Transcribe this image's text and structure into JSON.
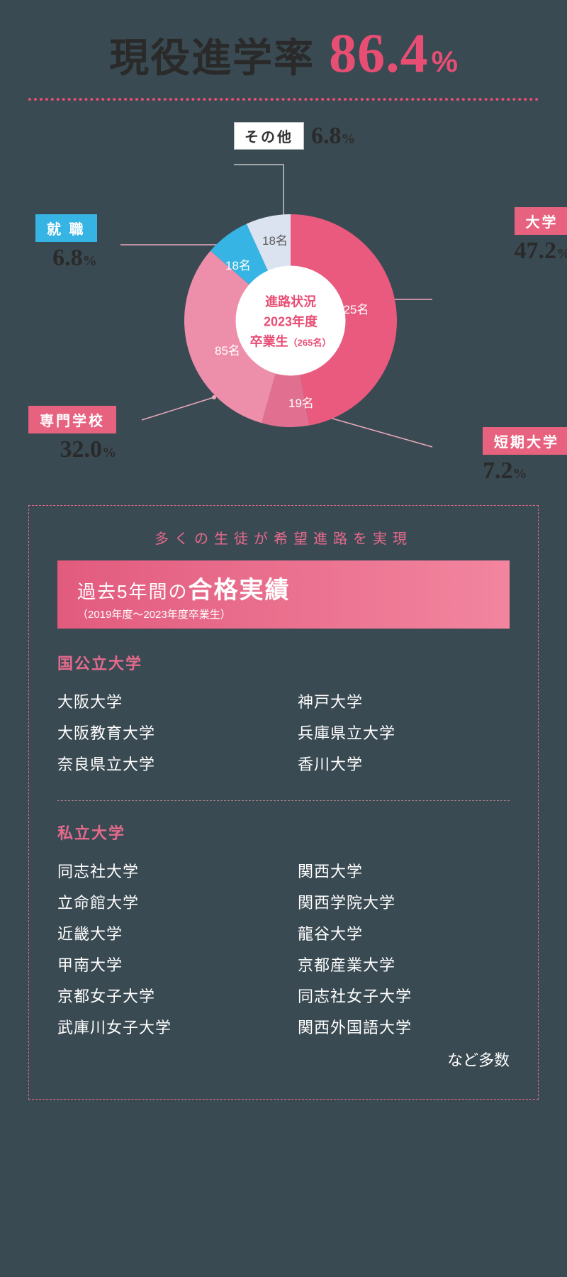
{
  "headline": {
    "label": "現役進学率",
    "value": "86.4",
    "unit": "%"
  },
  "colors": {
    "brand_pink": "#e84e74",
    "bg": "#3a4a52",
    "tag_pink": "#e6627f",
    "tag_cyan": "#36b4e4",
    "leader_pink": "#e9a9bb",
    "leader_grey": "#c8c8c8",
    "box_border": "#e46a8c",
    "box_grad_from": "#e25b7e",
    "box_grad_to": "#f2859f"
  },
  "donut": {
    "type": "pie",
    "center": {
      "line1": "進路状況",
      "line2": "2023年度",
      "line3_a": "卒業生",
      "line3_b": "（265名）"
    },
    "inner_radius_ratio": 0.52,
    "slices": [
      {
        "key": "university",
        "label": "大学",
        "count": "125名",
        "percent": "47.2",
        "color": "#e95a7e",
        "tagStyle": "pink"
      },
      {
        "key": "junior",
        "label": "短期大学",
        "count": "19名",
        "percent": "7.2",
        "color": "#e17090",
        "tagStyle": "pink"
      },
      {
        "key": "vocational",
        "label": "専門学校",
        "count": "85名",
        "percent": "32.0",
        "color": "#ed8eaa",
        "tagStyle": "pink"
      },
      {
        "key": "employment",
        "label": "就 職",
        "count": "18名",
        "percent": "6.8",
        "color": "#36b4e4",
        "tagStyle": "cyan"
      },
      {
        "key": "other",
        "label": "その他",
        "count": "18名",
        "percent": "6.8",
        "color": "#dbe3f0",
        "tagStyle": "nobg"
      }
    ]
  },
  "ext_labels": {
    "university": {
      "css": "right:-45px; top:120px;",
      "side": "right",
      "leader_from": [
        512,
        250
      ],
      "leader_to": [
        570,
        250
      ]
    },
    "junior": {
      "css": "right:-45px; top:430px;",
      "side": "right",
      "leader_from": [
        415,
        414
      ],
      "leader_to": [
        570,
        458
      ]
    },
    "vocational": {
      "css": "left:0; top:400px;",
      "side": "left",
      "leader_from": [
        262,
        388
      ],
      "leader_to": [
        160,
        420
      ]
    },
    "employment": {
      "css": "left:10px; top:130px;",
      "side": "left",
      "leader_from": [
        275,
        173
      ],
      "leader_to": [
        130,
        173
      ]
    },
    "other": {
      "css": "left:290px; top:0;",
      "side": "right",
      "leader_from": [
        360,
        138
      ],
      "leader_mid": [
        360,
        60
      ],
      "leader_to": [
        290,
        60
      ],
      "grey": true
    }
  },
  "slice_count_pos": {
    "university": "left:215px; top:120px;",
    "junior": "left:147px; top:252px;",
    "vocational": "left:43px; top:178px;",
    "employment": "left:58px; top:58px;",
    "other": "left:110px; top:23px;"
  },
  "box": {
    "tagline": "多くの生徒が希望進路を実現",
    "title_pre": "過去5年間の",
    "title_strong": "合格実績",
    "subtitle": "（2019年度〜2023年度卒業生）",
    "categories": [
      {
        "name": "国公立大学",
        "cols": [
          [
            "大阪大学",
            "大阪教育大学",
            "奈良県立大学"
          ],
          [
            "神戸大学",
            "兵庫県立大学",
            "香川大学"
          ]
        ]
      },
      {
        "name": "私立大学",
        "cols": [
          [
            "同志社大学",
            "立命館大学",
            "近畿大学",
            "甲南大学",
            "京都女子大学",
            "武庫川女子大学"
          ],
          [
            "関西大学",
            "関西学院大学",
            "龍谷大学",
            "京都産業大学",
            "同志社女子大学",
            "関西外国語大学"
          ]
        ],
        "etc": "など多数"
      }
    ]
  }
}
